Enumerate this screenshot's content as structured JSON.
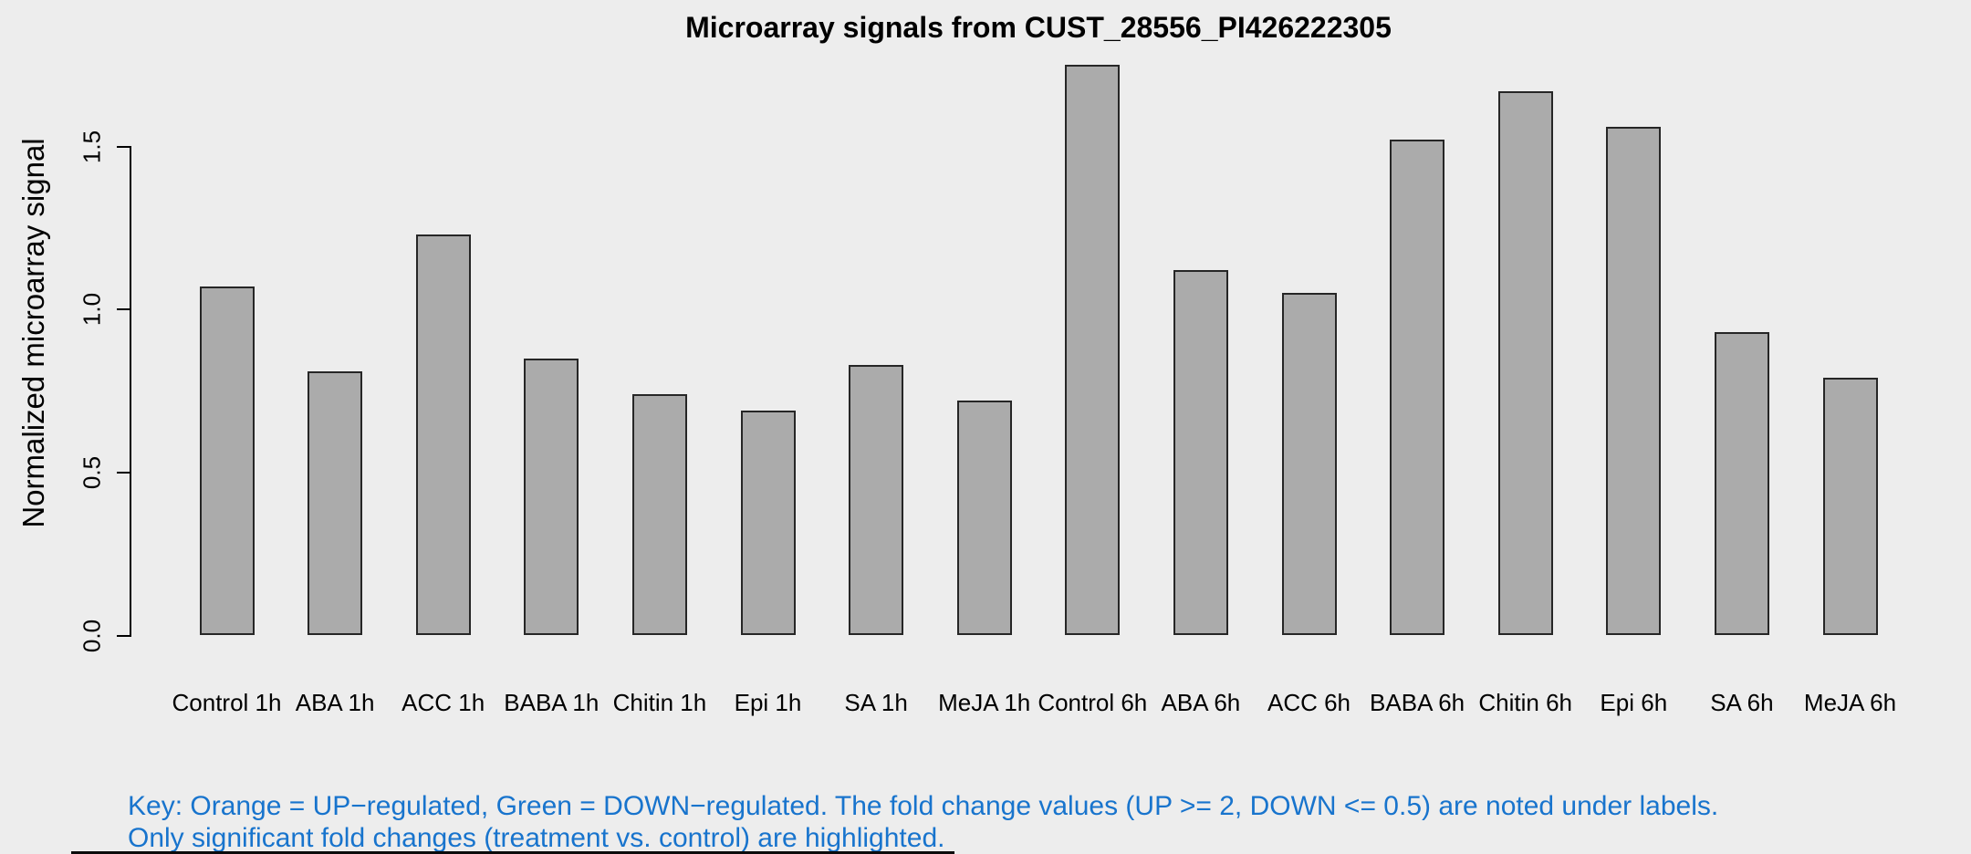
{
  "background": "#EDEDED",
  "note": {
    "color": "#1874CD",
    "line1": "Key: Orange = UP−regulated, Green = DOWN−regulated. The fold change values (UP >= 2, DOWN <= 0.5) are noted under labels.",
    "line2": "Only significant fold changes (treatment vs. control) are highlighted."
  },
  "chart_data": {
    "type": "bar",
    "title": "Microarray signals from CUST_28556_PI426222305",
    "ylabel": "Normalized microarray signal",
    "xlabel": "",
    "categories": [
      "Control 1h",
      "ABA 1h",
      "ACC 1h",
      "BABA 1h",
      "Chitin 1h",
      "Epi 1h",
      "SA 1h",
      "MeJA 1h",
      "Control 6h",
      "ABA 6h",
      "ACC 6h",
      "BABA 6h",
      "Chitin 6h",
      "Epi 6h",
      "SA 6h",
      "MeJA 6h"
    ],
    "values": [
      1.07,
      0.81,
      1.23,
      0.85,
      0.74,
      0.69,
      0.83,
      0.72,
      1.75,
      1.12,
      1.05,
      1.52,
      1.67,
      1.56,
      0.93,
      0.79
    ],
    "yticks": [
      0.0,
      0.5,
      1.0,
      1.5
    ],
    "ytick_labels": [
      "0.0",
      "0.5",
      "1.0",
      "1.5"
    ],
    "ylim": [
      0,
      1.78
    ],
    "grid": false,
    "legend": "none",
    "bar_fill": "#ABABAB",
    "bar_border": "#262626"
  }
}
